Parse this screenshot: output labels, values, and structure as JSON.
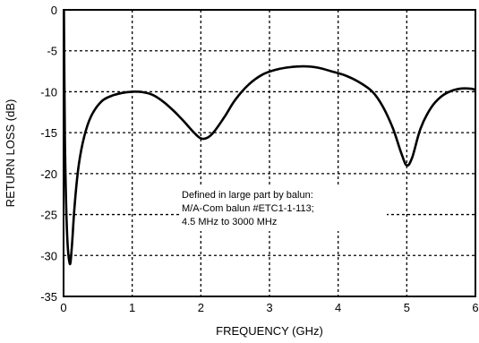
{
  "chart_data": {
    "type": "line",
    "title": "",
    "xlabel": "FREQUENCY (GHz)",
    "ylabel": "RETURN LOSS (dB)",
    "xlim": [
      0,
      6
    ],
    "ylim": [
      -35,
      0
    ],
    "x_ticks": [
      0,
      1,
      2,
      3,
      4,
      5,
      6
    ],
    "y_ticks": [
      0,
      -5,
      -10,
      -15,
      -20,
      -25,
      -30,
      -35
    ],
    "grid": true,
    "annotation": [
      "Defined in large part by balun:",
      "M/A-Com balun #ETC1-1-113;",
      "4.5 MHz to 3000 MHz"
    ],
    "series": [
      {
        "points": [
          [
            0.005,
            0
          ],
          [
            0.02,
            -16
          ],
          [
            0.05,
            -27
          ],
          [
            0.09,
            -31
          ],
          [
            0.12,
            -29
          ],
          [
            0.16,
            -24
          ],
          [
            0.22,
            -19
          ],
          [
            0.3,
            -15.5
          ],
          [
            0.4,
            -13
          ],
          [
            0.55,
            -11.2
          ],
          [
            0.7,
            -10.5
          ],
          [
            0.85,
            -10.15
          ],
          [
            1.0,
            -10.0
          ],
          [
            1.15,
            -10.05
          ],
          [
            1.3,
            -10.4
          ],
          [
            1.45,
            -11.2
          ],
          [
            1.6,
            -12.3
          ],
          [
            1.75,
            -13.6
          ],
          [
            1.9,
            -15.0
          ],
          [
            2.0,
            -15.7
          ],
          [
            2.1,
            -15.6
          ],
          [
            2.2,
            -14.8
          ],
          [
            2.35,
            -13.0
          ],
          [
            2.5,
            -11.0
          ],
          [
            2.7,
            -9.1
          ],
          [
            2.9,
            -7.9
          ],
          [
            3.1,
            -7.3
          ],
          [
            3.3,
            -7.0
          ],
          [
            3.5,
            -6.9
          ],
          [
            3.7,
            -7.05
          ],
          [
            3.9,
            -7.5
          ],
          [
            4.1,
            -8.0
          ],
          [
            4.3,
            -8.8
          ],
          [
            4.5,
            -10.0
          ],
          [
            4.65,
            -11.8
          ],
          [
            4.8,
            -14.5
          ],
          [
            4.92,
            -17.5
          ],
          [
            5.0,
            -19.0
          ],
          [
            5.08,
            -18.0
          ],
          [
            5.2,
            -14.5
          ],
          [
            5.35,
            -12.0
          ],
          [
            5.5,
            -10.6
          ],
          [
            5.65,
            -9.9
          ],
          [
            5.8,
            -9.6
          ],
          [
            5.95,
            -9.65
          ],
          [
            6.0,
            -9.8
          ]
        ]
      }
    ]
  }
}
